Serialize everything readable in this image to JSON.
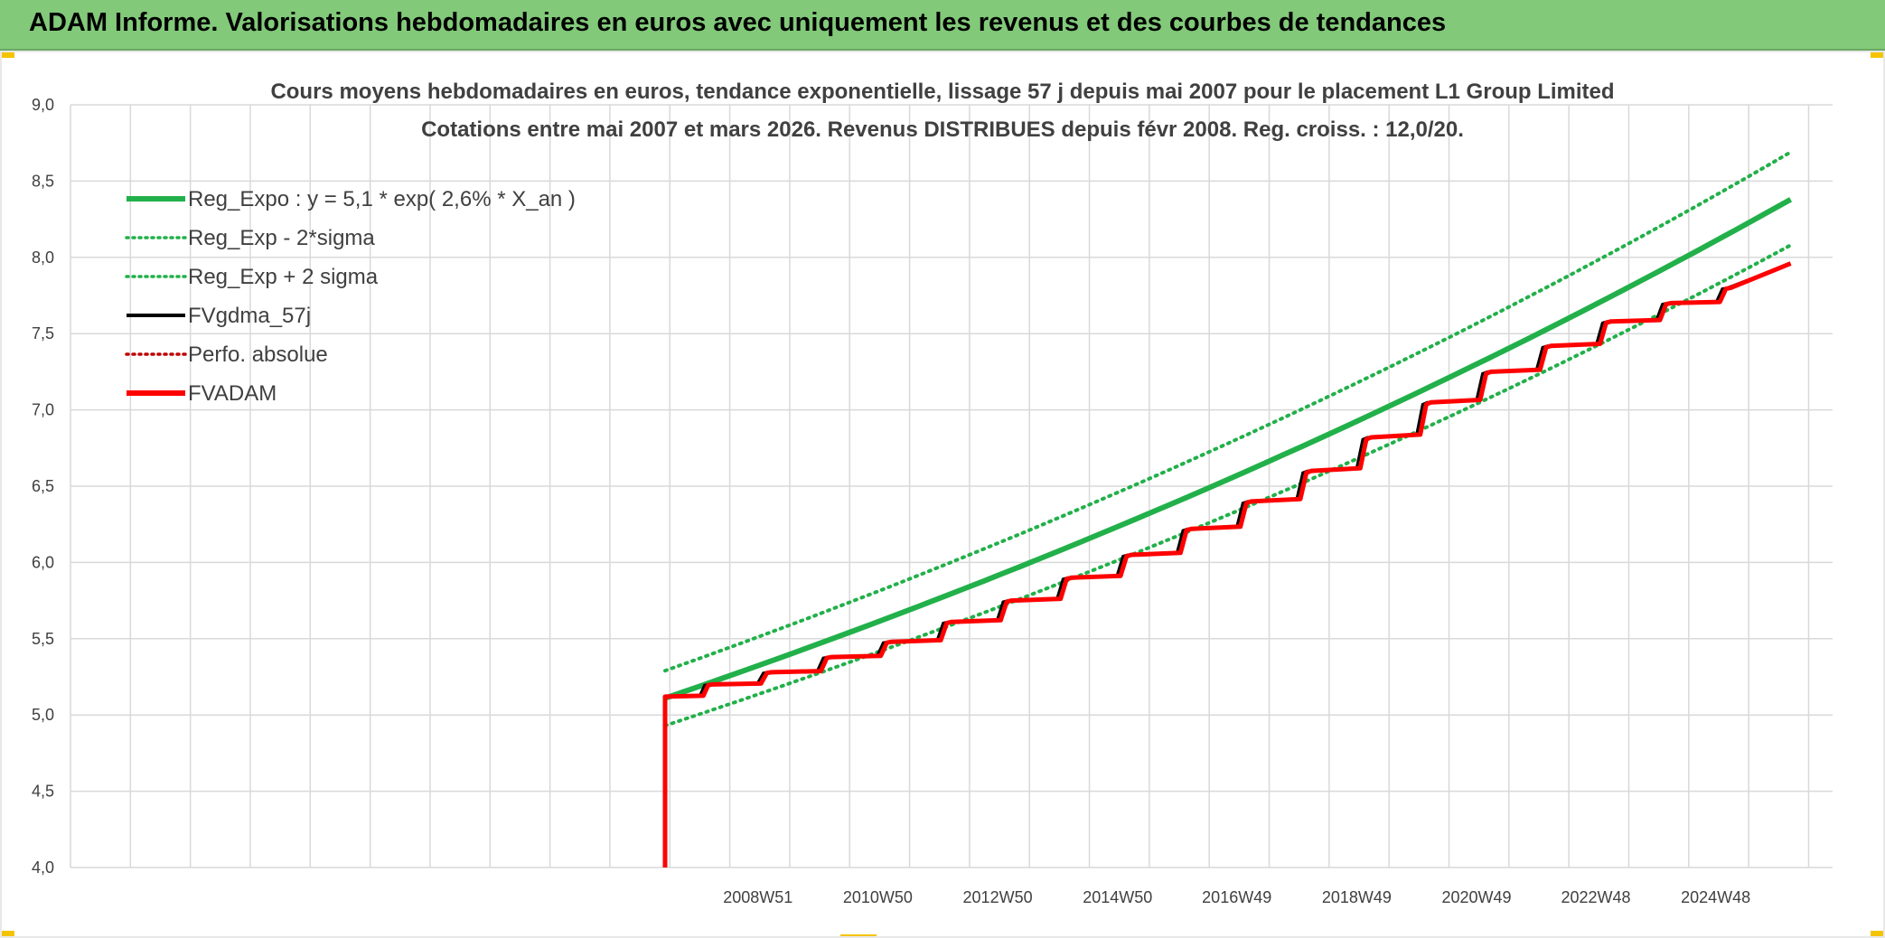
{
  "banner": {
    "title": "ADAM Informe. Valorisations hebdomadaires en euros avec uniquement les revenus et des courbes de tendances"
  },
  "colors": {
    "banner_bg": "#82c97a",
    "trend": "#22b04a",
    "fvgdma": "#000000",
    "fvadam": "#ff0000",
    "perfo": "#c00000",
    "grid": "#d9d9d9",
    "corner": "#f5c400"
  },
  "chart_data": {
    "type": "line",
    "title_lines": [
      "Cours moyens hebdomadaires en euros, tendance exponentielle, lissage 57 j depuis mai 2007 pour le placement L1 Group Limited",
      "Cotations entre mai 2007 et mars 2026. Revenus DISTRIBUES depuis févr 2008. Reg. croiss. : 12,0/20."
    ],
    "y_ticks": [
      "9,0",
      "8,5",
      "8,0",
      "7,5",
      "7,0",
      "6,5",
      "6,0",
      "5,5",
      "5,0",
      "4,5",
      "4,0"
    ],
    "ylim": [
      4.0,
      9.0
    ],
    "xlim": [
      1997.5,
      2026.9
    ],
    "x_tick_labels": [
      "2008W51",
      "2010W50",
      "2012W50",
      "2014W50",
      "2016W49",
      "2018W49",
      "2020W49",
      "2022W48",
      "2024W48"
    ],
    "x_tick_years": [
      2008.97,
      2010.97,
      2012.97,
      2014.97,
      2016.96,
      2018.96,
      2020.96,
      2022.95,
      2024.95
    ],
    "x_grid_years": [
      1998.5,
      1999.5,
      2000.5,
      2001.5,
      2002.5,
      2003.5,
      2004.5,
      2005.5,
      2006.5,
      2007.5,
      2008.5,
      2009.5,
      2010.5,
      2011.5,
      2012.5,
      2013.5,
      2014.5,
      2015.5,
      2016.5,
      2017.5,
      2018.5,
      2019.5,
      2020.5,
      2021.5,
      2022.5,
      2023.5,
      2024.5,
      2025.5,
      2026.5
    ],
    "legend": [
      {
        "name": "Reg_Expo : y = 5,1 * exp( 2,6% *  X_an )",
        "color": "#22b04a",
        "style": "solid-thick"
      },
      {
        "name": "Reg_Exp - 2*sigma",
        "color": "#22b04a",
        "style": "dotted"
      },
      {
        "name": "Reg_Exp + 2 sigma",
        "color": "#22b04a",
        "style": "dotted"
      },
      {
        "name": "FVgdma_57j",
        "color": "#000000",
        "style": "solid"
      },
      {
        "name": "Perfo. absolue",
        "color": "#c00000",
        "style": "dotted"
      },
      {
        "name": "FVADAM",
        "color": "#ff0000",
        "style": "solid-thick"
      }
    ],
    "legend_position": "top-left",
    "series": [
      {
        "name": "Reg_Expo : y = 5,1 * exp( 2,6% *  X_an )",
        "x_start": 2007.42,
        "x_end": 2026.2,
        "y_start": 5.11,
        "y_end": 8.38
      },
      {
        "name": "Reg_Exp - 2*sigma",
        "x_start": 2007.42,
        "x_end": 2026.2,
        "y_start": 4.93,
        "y_end": 8.08
      },
      {
        "name": "Reg_Exp + 2 sigma",
        "x_start": 2007.42,
        "x_end": 2026.2,
        "y_start": 5.29,
        "y_end": 8.69
      },
      {
        "name": "FVADAM",
        "x": [
          2007.42,
          2007.42,
          2008.2,
          2009.2,
          2010.2,
          2011.2,
          2012.2,
          2013.2,
          2014.2,
          2015.2,
          2016.2,
          2017.2,
          2018.2,
          2019.2,
          2020.2,
          2021.2,
          2022.2,
          2023.2,
          2024.2,
          2025.2,
          2026.2
        ],
        "y": [
          4.0,
          5.12,
          5.2,
          5.28,
          5.38,
          5.48,
          5.61,
          5.75,
          5.9,
          6.05,
          6.22,
          6.4,
          6.6,
          6.82,
          7.05,
          7.25,
          7.42,
          7.58,
          7.7,
          7.8,
          7.96
        ],
        "end_flat_from": 2025.2
      }
    ]
  }
}
